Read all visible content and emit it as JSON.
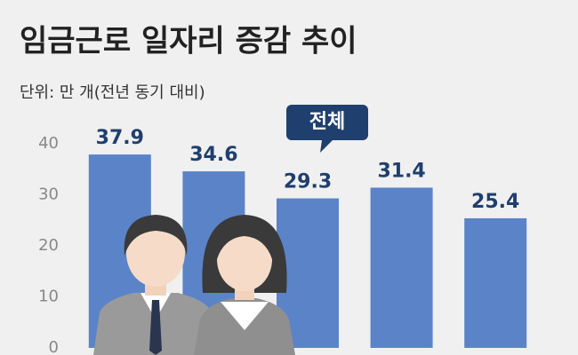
{
  "chart_data": {
    "type": "bar",
    "title": "임금근로 일자리 증감 추이",
    "subtitle": "단위: 만 개(전년 동기 대비)",
    "annotation": "전체",
    "categories": [
      null,
      null,
      null,
      null,
      null
    ],
    "values": [
      37.9,
      34.6,
      29.3,
      31.4,
      25.4
    ],
    "color": "#5b84c8",
    "ylim": [
      0,
      40
    ],
    "yticks": [
      0,
      10,
      20,
      30,
      40
    ],
    "grid": false
  }
}
